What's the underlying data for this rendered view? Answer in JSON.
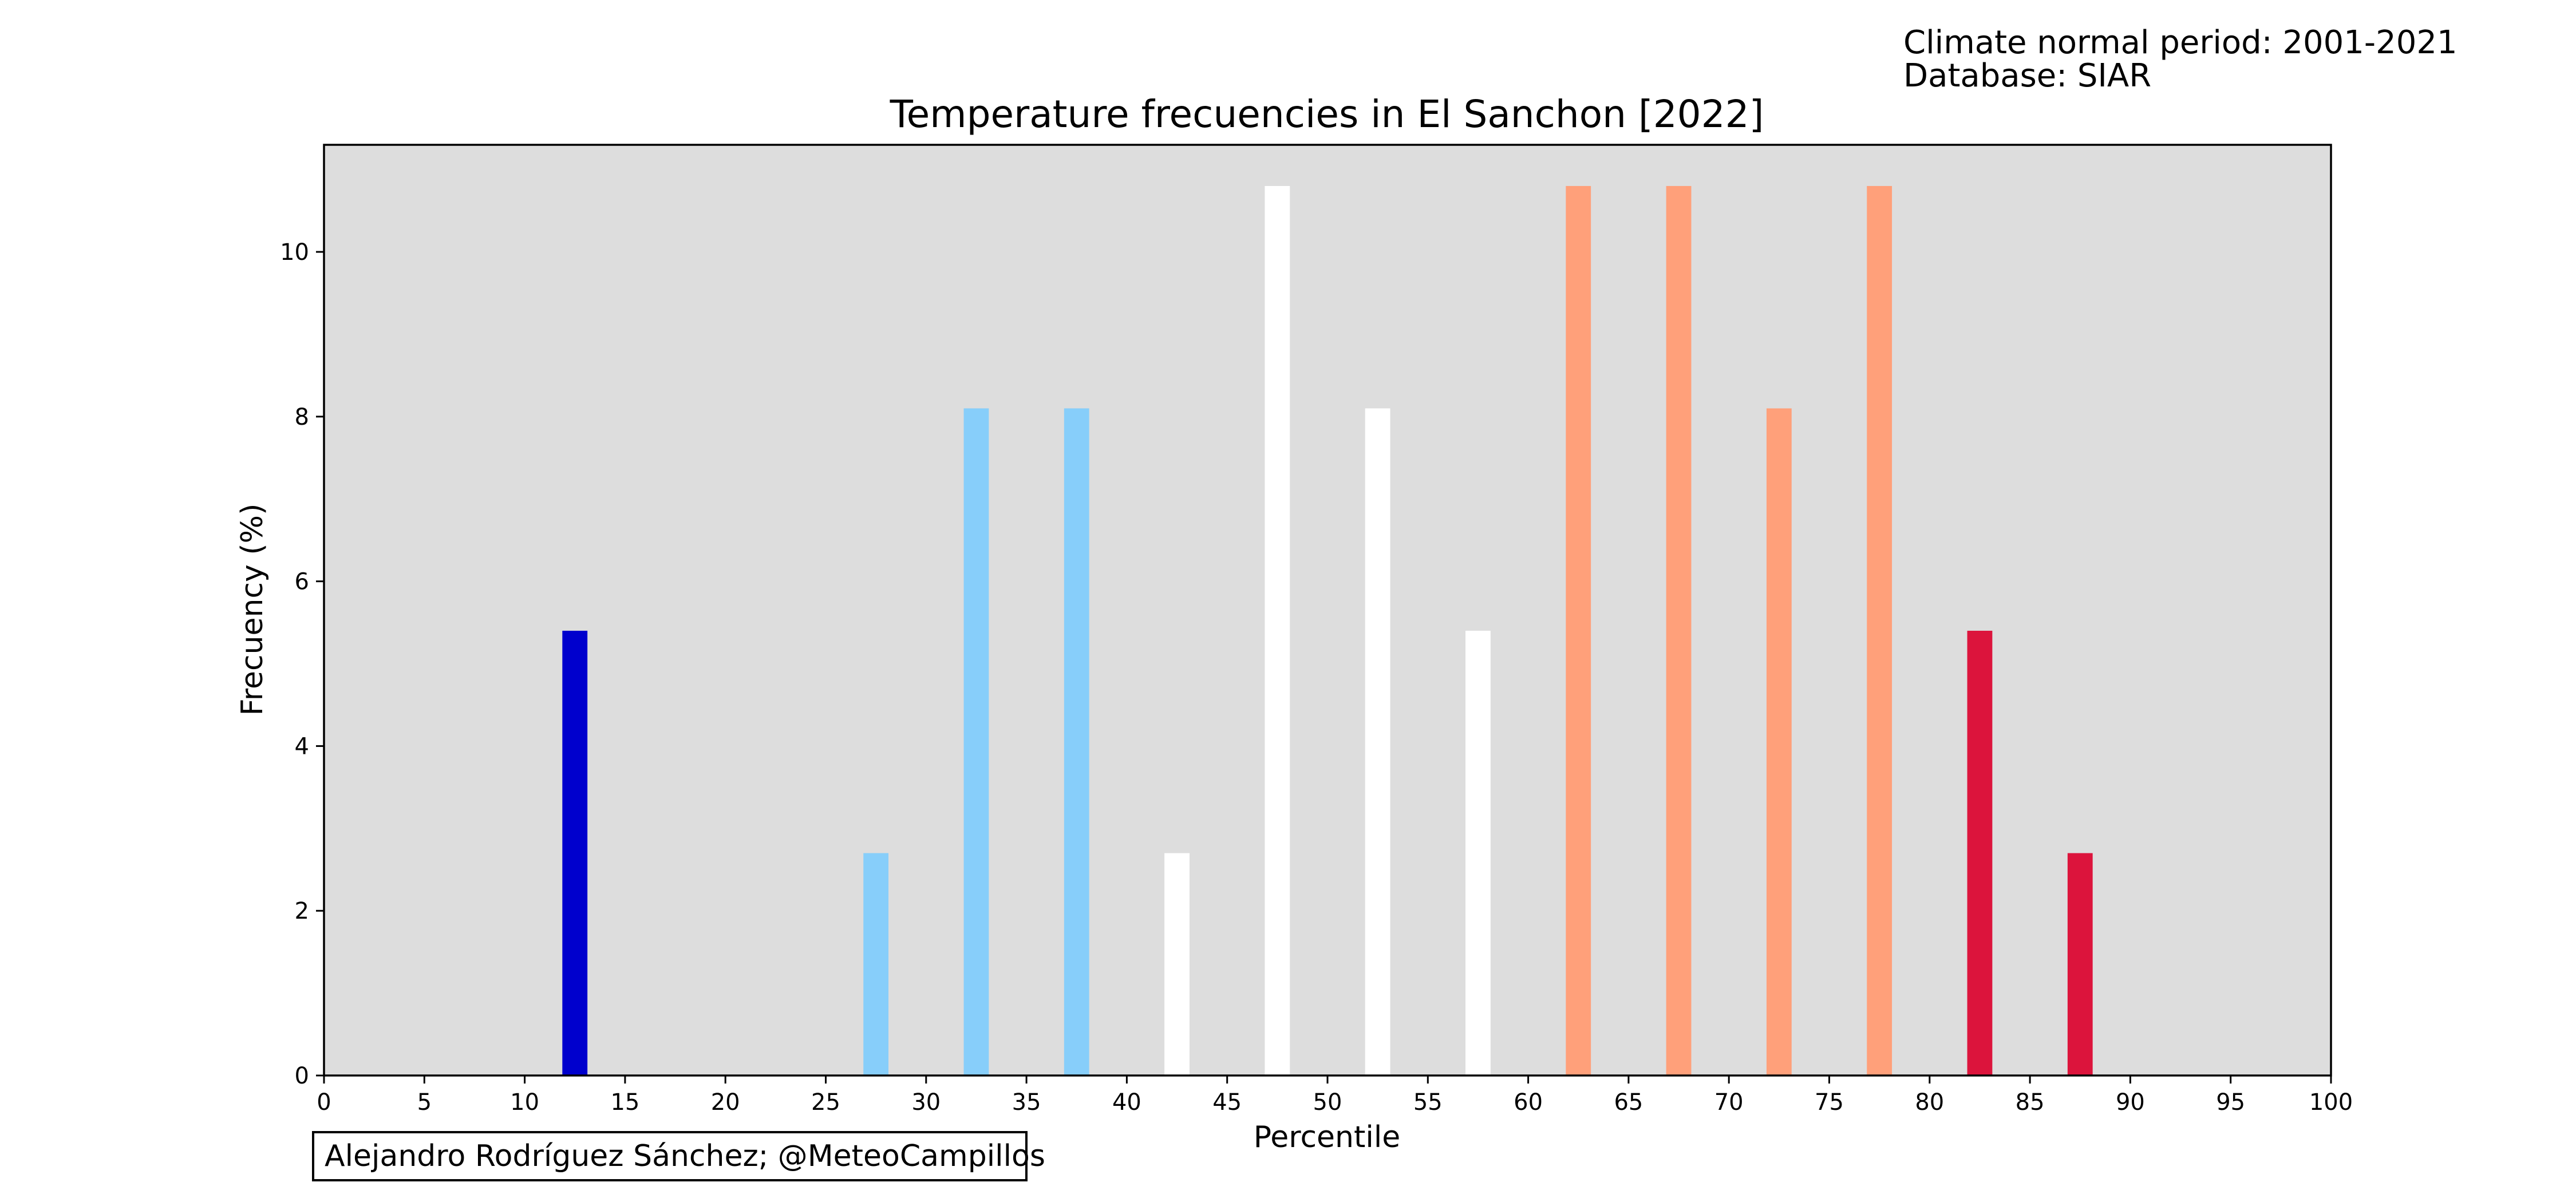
{
  "header": {
    "normal_period": "Climate normal period: 2001-2021",
    "database": "Database: SIAR"
  },
  "credit": "Alejandro Rodríguez Sánchez; @MeteoCampillos",
  "chart_data": {
    "type": "bar",
    "title": "Temperature frecuencies in El Sanchon [2022]",
    "xlabel": "Percentile",
    "ylabel": "Frecuency (%)",
    "xlim": [
      0,
      100
    ],
    "ylim": [
      0,
      11.3
    ],
    "xticks": [
      0,
      5,
      10,
      15,
      20,
      25,
      30,
      35,
      40,
      45,
      50,
      55,
      60,
      65,
      70,
      75,
      80,
      85,
      90,
      95,
      100
    ],
    "yticks": [
      0,
      2,
      4,
      6,
      8,
      10
    ],
    "bar_width": 1.25,
    "background": "#dddddd",
    "bars": [
      {
        "x": 12.5,
        "value": 5.4,
        "color": "#0000cd"
      },
      {
        "x": 27.5,
        "value": 2.7,
        "color": "#87cefa"
      },
      {
        "x": 32.5,
        "value": 8.1,
        "color": "#87cefa"
      },
      {
        "x": 37.5,
        "value": 8.1,
        "color": "#87cefa"
      },
      {
        "x": 42.5,
        "value": 2.7,
        "color": "#ffffff"
      },
      {
        "x": 47.5,
        "value": 10.8,
        "color": "#ffffff"
      },
      {
        "x": 52.5,
        "value": 8.1,
        "color": "#ffffff"
      },
      {
        "x": 57.5,
        "value": 5.4,
        "color": "#ffffff"
      },
      {
        "x": 62.5,
        "value": 10.8,
        "color": "#ffa07a"
      },
      {
        "x": 67.5,
        "value": 10.8,
        "color": "#ffa07a"
      },
      {
        "x": 72.5,
        "value": 8.1,
        "color": "#ffa07a"
      },
      {
        "x": 77.5,
        "value": 10.8,
        "color": "#ffa07a"
      },
      {
        "x": 82.5,
        "value": 5.4,
        "color": "#dc143c"
      },
      {
        "x": 87.5,
        "value": 2.7,
        "color": "#dc143c"
      }
    ]
  }
}
